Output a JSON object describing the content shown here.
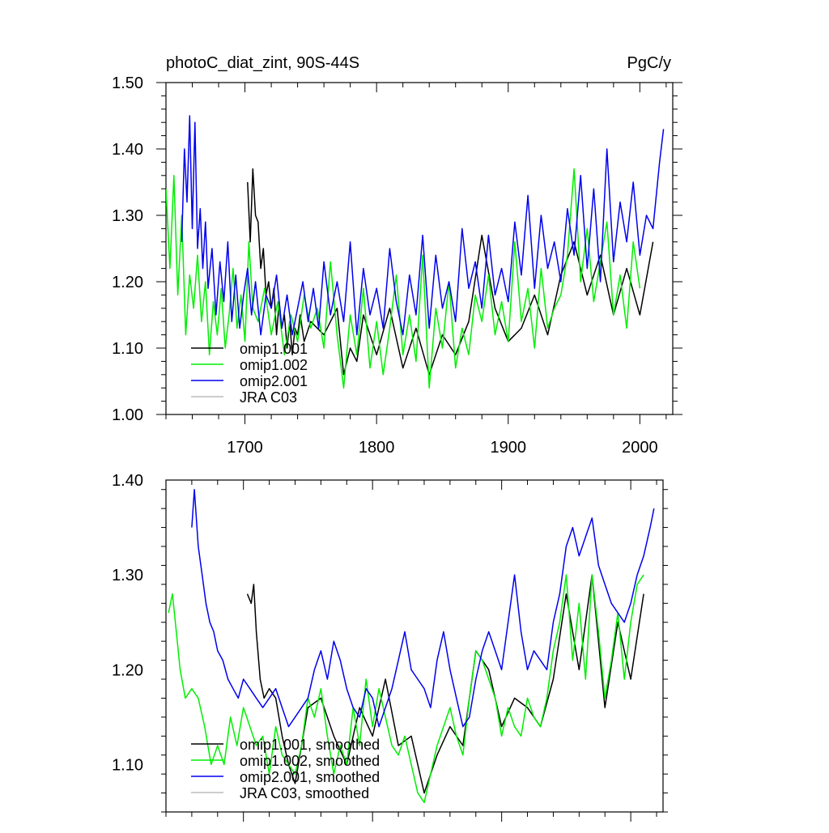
{
  "chart_data": [
    {
      "type": "line",
      "title": "photoC_diat_zint, 90S-44S",
      "units": "PgC/y",
      "xlim": [
        1640,
        2025
      ],
      "ylim": [
        1.0,
        1.5
      ],
      "xticks": [
        1700,
        1800,
        1900,
        2000
      ],
      "xtick_labels": [
        "1700",
        "1800",
        "1900",
        "2000"
      ],
      "yticks": [
        1.0,
        1.1,
        1.2,
        1.3,
        1.4,
        1.5
      ],
      "ytick_labels": [
        "1.00",
        "1.10",
        "1.20",
        "1.30",
        "1.40",
        "1.50"
      ],
      "legend": [
        "omip1.001",
        "omip1.002",
        "omip2.001",
        "JRA C03"
      ],
      "series": [
        {
          "name": "omip1.001",
          "color": "#000000",
          "x": [
            1702,
            1704,
            1706,
            1708,
            1710,
            1712,
            1714,
            1716,
            1718,
            1720,
            1722,
            1724,
            1726,
            1728,
            1730,
            1732,
            1734,
            1736,
            1738,
            1740,
            1742,
            1745,
            1750,
            1760,
            1770,
            1775,
            1780,
            1785,
            1790,
            1800,
            1810,
            1820,
            1830,
            1840,
            1850,
            1860,
            1870,
            1880,
            1890,
            1900,
            1910,
            1920,
            1930,
            1940,
            1950,
            1960,
            1970,
            1980,
            1990,
            2000,
            2010
          ],
          "values": [
            1.35,
            1.26,
            1.37,
            1.3,
            1.29,
            1.22,
            1.25,
            1.18,
            1.2,
            1.16,
            1.19,
            1.12,
            1.17,
            1.13,
            1.15,
            1.1,
            1.14,
            1.09,
            1.13,
            1.12,
            1.15,
            1.11,
            1.14,
            1.12,
            1.16,
            1.06,
            1.1,
            1.08,
            1.15,
            1.09,
            1.16,
            1.07,
            1.13,
            1.06,
            1.12,
            1.09,
            1.14,
            1.27,
            1.16,
            1.11,
            1.13,
            1.18,
            1.12,
            1.21,
            1.26,
            1.18,
            1.24,
            1.15,
            1.22,
            1.15,
            1.26
          ]
        },
        {
          "name": "omip1.002",
          "color": "#00ee00",
          "x": [
            1640,
            1643,
            1646,
            1649,
            1652,
            1655,
            1658,
            1661,
            1664,
            1667,
            1670,
            1673,
            1676,
            1679,
            1682,
            1685,
            1688,
            1691,
            1694,
            1697,
            1700,
            1703,
            1706,
            1710,
            1715,
            1720,
            1725,
            1730,
            1735,
            1740,
            1745,
            1750,
            1755,
            1760,
            1765,
            1770,
            1775,
            1780,
            1785,
            1790,
            1795,
            1800,
            1805,
            1810,
            1815,
            1820,
            1825,
            1830,
            1835,
            1840,
            1845,
            1850,
            1855,
            1860,
            1865,
            1870,
            1875,
            1880,
            1885,
            1890,
            1895,
            1900,
            1905,
            1910,
            1915,
            1920,
            1925,
            1930,
            1935,
            1940,
            1945,
            1950,
            1955,
            1960,
            1965,
            1970,
            1975,
            1980,
            1985,
            1990,
            1995,
            2000
          ],
          "values": [
            1.34,
            1.22,
            1.36,
            1.18,
            1.3,
            1.12,
            1.21,
            1.16,
            1.24,
            1.14,
            1.2,
            1.09,
            1.17,
            1.12,
            1.19,
            1.1,
            1.15,
            1.22,
            1.13,
            1.18,
            1.11,
            1.26,
            1.16,
            1.14,
            1.19,
            1.12,
            1.17,
            1.09,
            1.15,
            1.11,
            1.18,
            1.13,
            1.16,
            1.1,
            1.23,
            1.12,
            1.04,
            1.15,
            1.09,
            1.19,
            1.07,
            1.14,
            1.06,
            1.13,
            1.21,
            1.09,
            1.15,
            1.08,
            1.24,
            1.04,
            1.16,
            1.1,
            1.2,
            1.07,
            1.13,
            1.09,
            1.18,
            1.14,
            1.21,
            1.12,
            1.17,
            1.11,
            1.26,
            1.14,
            1.19,
            1.1,
            1.22,
            1.13,
            1.16,
            1.18,
            1.24,
            1.37,
            1.2,
            1.28,
            1.17,
            1.23,
            1.29,
            1.15,
            1.21,
            1.13,
            1.26,
            1.19
          ]
        },
        {
          "name": "omip2.001",
          "color": "#0000ee",
          "x": [
            1652,
            1654,
            1656,
            1658,
            1660,
            1662,
            1664,
            1666,
            1668,
            1670,
            1672,
            1675,
            1678,
            1681,
            1684,
            1687,
            1690,
            1693,
            1696,
            1699,
            1702,
            1705,
            1708,
            1712,
            1716,
            1720,
            1724,
            1728,
            1732,
            1736,
            1740,
            1744,
            1748,
            1752,
            1756,
            1760,
            1765,
            1770,
            1775,
            1780,
            1785,
            1790,
            1795,
            1800,
            1805,
            1810,
            1815,
            1820,
            1825,
            1830,
            1835,
            1840,
            1845,
            1850,
            1855,
            1860,
            1865,
            1870,
            1875,
            1880,
            1885,
            1890,
            1895,
            1900,
            1905,
            1910,
            1915,
            1920,
            1925,
            1930,
            1935,
            1940,
            1945,
            1950,
            1955,
            1960,
            1965,
            1970,
            1975,
            1980,
            1985,
            1990,
            1995,
            2000,
            2005,
            2010,
            2015,
            2018
          ],
          "values": [
            1.26,
            1.4,
            1.32,
            1.45,
            1.28,
            1.44,
            1.25,
            1.31,
            1.22,
            1.29,
            1.19,
            1.25,
            1.15,
            1.23,
            1.17,
            1.26,
            1.14,
            1.21,
            1.13,
            1.18,
            1.22,
            1.15,
            1.2,
            1.12,
            1.18,
            1.16,
            1.21,
            1.13,
            1.18,
            1.12,
            1.16,
            1.2,
            1.14,
            1.19,
            1.13,
            1.23,
            1.15,
            1.2,
            1.14,
            1.26,
            1.12,
            1.22,
            1.15,
            1.19,
            1.13,
            1.25,
            1.17,
            1.12,
            1.21,
            1.15,
            1.27,
            1.13,
            1.24,
            1.16,
            1.2,
            1.14,
            1.28,
            1.19,
            1.23,
            1.16,
            1.27,
            1.18,
            1.22,
            1.17,
            1.29,
            1.21,
            1.33,
            1.19,
            1.3,
            1.22,
            1.26,
            1.2,
            1.31,
            1.24,
            1.36,
            1.22,
            1.34,
            1.2,
            1.4,
            1.23,
            1.32,
            1.26,
            1.35,
            1.24,
            1.3,
            1.28,
            1.38,
            1.43
          ]
        },
        {
          "name": "JRA C03",
          "color": "#bbbbbb",
          "x": [],
          "values": []
        }
      ]
    },
    {
      "type": "line",
      "title": "",
      "xlim": [
        1640,
        2025
      ],
      "ylim": [
        1.05,
        1.4
      ],
      "xticks": [
        1700,
        1800,
        1900,
        2000
      ],
      "yticks": [
        1.1,
        1.2,
        1.3,
        1.4
      ],
      "ytick_labels": [
        "1.10",
        "1.20",
        "1.30",
        "1.40"
      ],
      "legend": [
        "omip1.001, smoothed",
        "omip1.002, smoothed",
        "omip2.001, smoothed",
        "JRA C03, smoothed"
      ],
      "series": [
        {
          "name": "omip1.001, smoothed",
          "color": "#000000",
          "x": [
            1703,
            1706,
            1708,
            1710,
            1713,
            1716,
            1720,
            1725,
            1730,
            1735,
            1740,
            1745,
            1750,
            1760,
            1770,
            1780,
            1790,
            1800,
            1810,
            1820,
            1830,
            1840,
            1850,
            1860,
            1870,
            1880,
            1890,
            1900,
            1910,
            1920,
            1930,
            1940,
            1950,
            1960,
            1970,
            1980,
            1990,
            2000,
            2010
          ],
          "values": [
            1.28,
            1.27,
            1.29,
            1.24,
            1.19,
            1.17,
            1.18,
            1.17,
            1.13,
            1.1,
            1.08,
            1.12,
            1.16,
            1.17,
            1.13,
            1.1,
            1.16,
            1.13,
            1.19,
            1.12,
            1.13,
            1.07,
            1.11,
            1.14,
            1.12,
            1.22,
            1.2,
            1.14,
            1.17,
            1.16,
            1.14,
            1.19,
            1.28,
            1.2,
            1.3,
            1.16,
            1.25,
            1.19,
            1.28
          ]
        },
        {
          "name": "omip1.002, smoothed",
          "color": "#00ee00",
          "x": [
            1642,
            1645,
            1648,
            1651,
            1655,
            1660,
            1665,
            1670,
            1675,
            1680,
            1685,
            1690,
            1695,
            1700,
            1705,
            1710,
            1715,
            1720,
            1725,
            1730,
            1735,
            1740,
            1745,
            1750,
            1755,
            1760,
            1765,
            1770,
            1775,
            1780,
            1785,
            1790,
            1795,
            1800,
            1805,
            1810,
            1815,
            1820,
            1825,
            1830,
            1835,
            1840,
            1845,
            1850,
            1855,
            1860,
            1865,
            1870,
            1875,
            1880,
            1885,
            1890,
            1895,
            1900,
            1905,
            1910,
            1915,
            1920,
            1925,
            1930,
            1935,
            1940,
            1945,
            1950,
            1955,
            1960,
            1965,
            1970,
            1975,
            1980,
            1985,
            1990,
            1995,
            2000,
            2005,
            2010
          ],
          "values": [
            1.26,
            1.28,
            1.24,
            1.2,
            1.17,
            1.18,
            1.17,
            1.14,
            1.1,
            1.12,
            1.1,
            1.15,
            1.12,
            1.16,
            1.14,
            1.12,
            1.13,
            1.09,
            1.14,
            1.11,
            1.1,
            1.09,
            1.12,
            1.17,
            1.15,
            1.18,
            1.13,
            1.09,
            1.12,
            1.1,
            1.16,
            1.12,
            1.19,
            1.14,
            1.18,
            1.15,
            1.12,
            1.11,
            1.13,
            1.1,
            1.07,
            1.06,
            1.09,
            1.12,
            1.14,
            1.16,
            1.13,
            1.11,
            1.17,
            1.22,
            1.21,
            1.19,
            1.17,
            1.13,
            1.16,
            1.14,
            1.13,
            1.17,
            1.15,
            1.14,
            1.17,
            1.22,
            1.25,
            1.3,
            1.21,
            1.27,
            1.19,
            1.3,
            1.24,
            1.17,
            1.21,
            1.26,
            1.19,
            1.25,
            1.29,
            1.3
          ]
        },
        {
          "name": "omip2.001, smoothed",
          "color": "#0000ee",
          "x": [
            1660,
            1662,
            1665,
            1668,
            1671,
            1674,
            1677,
            1680,
            1684,
            1688,
            1692,
            1696,
            1700,
            1705,
            1710,
            1715,
            1720,
            1725,
            1730,
            1735,
            1740,
            1745,
            1750,
            1755,
            1760,
            1765,
            1770,
            1775,
            1780,
            1785,
            1790,
            1795,
            1800,
            1805,
            1810,
            1815,
            1820,
            1825,
            1830,
            1835,
            1840,
            1845,
            1850,
            1855,
            1860,
            1865,
            1870,
            1875,
            1880,
            1885,
            1890,
            1895,
            1900,
            1905,
            1910,
            1915,
            1920,
            1925,
            1930,
            1935,
            1940,
            1945,
            1950,
            1955,
            1960,
            1965,
            1970,
            1975,
            1980,
            1985,
            1990,
            1995,
            2000,
            2005,
            2010,
            2015,
            2018
          ],
          "values": [
            1.35,
            1.39,
            1.33,
            1.3,
            1.27,
            1.25,
            1.24,
            1.22,
            1.21,
            1.19,
            1.18,
            1.17,
            1.19,
            1.18,
            1.17,
            1.16,
            1.17,
            1.18,
            1.16,
            1.14,
            1.15,
            1.16,
            1.17,
            1.2,
            1.22,
            1.19,
            1.23,
            1.21,
            1.18,
            1.16,
            1.15,
            1.18,
            1.17,
            1.14,
            1.16,
            1.18,
            1.21,
            1.24,
            1.2,
            1.19,
            1.18,
            1.16,
            1.21,
            1.24,
            1.2,
            1.17,
            1.14,
            1.15,
            1.19,
            1.22,
            1.24,
            1.22,
            1.2,
            1.25,
            1.3,
            1.24,
            1.2,
            1.22,
            1.21,
            1.2,
            1.25,
            1.28,
            1.33,
            1.35,
            1.32,
            1.34,
            1.36,
            1.31,
            1.29,
            1.27,
            1.26,
            1.25,
            1.27,
            1.3,
            1.32,
            1.35,
            1.37
          ]
        },
        {
          "name": "JRA C03, smoothed",
          "color": "#bbbbbb",
          "x": [],
          "values": []
        }
      ]
    }
  ]
}
